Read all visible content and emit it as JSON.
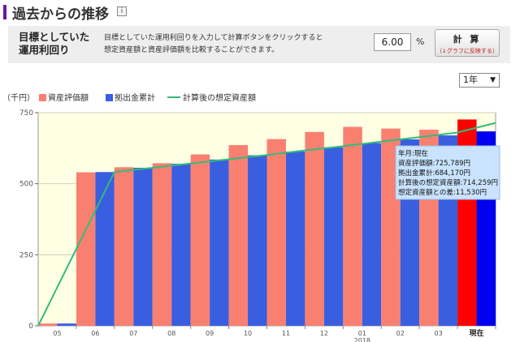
{
  "header": {
    "title": "過去からの推移",
    "info_icon": "info-icon"
  },
  "target_panel": {
    "label_line1": "目標としていた",
    "label_line2": "運用利回り",
    "desc_line1": "目標としていた運用利回りを入力して計算ボタンをクリックすると",
    "desc_line2": "想定資産額と資産評価額を比較することができます。",
    "rate_value": "6.00",
    "rate_unit": "%",
    "calc_label": "計 算",
    "calc_sub": "（↓グラフに反映する）"
  },
  "period_select": {
    "value": "1年"
  },
  "legend": {
    "unit": "（千円）",
    "asset": "資産評価額",
    "contrib": "拠出金累計",
    "projected": "計算後の想定資産額"
  },
  "colors": {
    "asset": "#f98070",
    "contrib": "#3a5ee0",
    "projected": "#33bb7a",
    "asset_current": "#ff0000",
    "contrib_current": "#0000ee",
    "plot_bg": "#ffffe4",
    "tooltip_bg": "#c9e3ff"
  },
  "tooltip": {
    "line1": "年月:現在",
    "line2": "資産評価額:725,789円",
    "line3": "拠出金累計:684,170円",
    "line4": "計算後の想定資産額:714,259円",
    "line5": "想定資産額との差:11,530円"
  },
  "chart_data": {
    "type": "bar",
    "categories": [
      "05",
      "06",
      "07",
      "08",
      "09",
      "10",
      "11",
      "12",
      "01",
      "02",
      "03",
      "現在"
    ],
    "year_label": "2018",
    "series": [
      {
        "name": "資産評価額",
        "values": [
          8,
          540,
          558,
          572,
          603,
          636,
          657,
          682,
          700,
          694,
          690,
          726
        ]
      },
      {
        "name": "拠出金累計",
        "values": [
          8,
          541,
          556,
          570,
          585,
          600,
          613,
          628,
          643,
          656,
          670,
          684
        ]
      },
      {
        "name": "計算後の想定資産額",
        "type": "line",
        "values": [
          0,
          541,
          556,
          571,
          586,
          601,
          617,
          632,
          648,
          664,
          680,
          714
        ]
      }
    ],
    "yticks": [
      0,
      250,
      500,
      750
    ],
    "ylim": [
      0,
      750
    ],
    "ylabel": "（千円）"
  }
}
